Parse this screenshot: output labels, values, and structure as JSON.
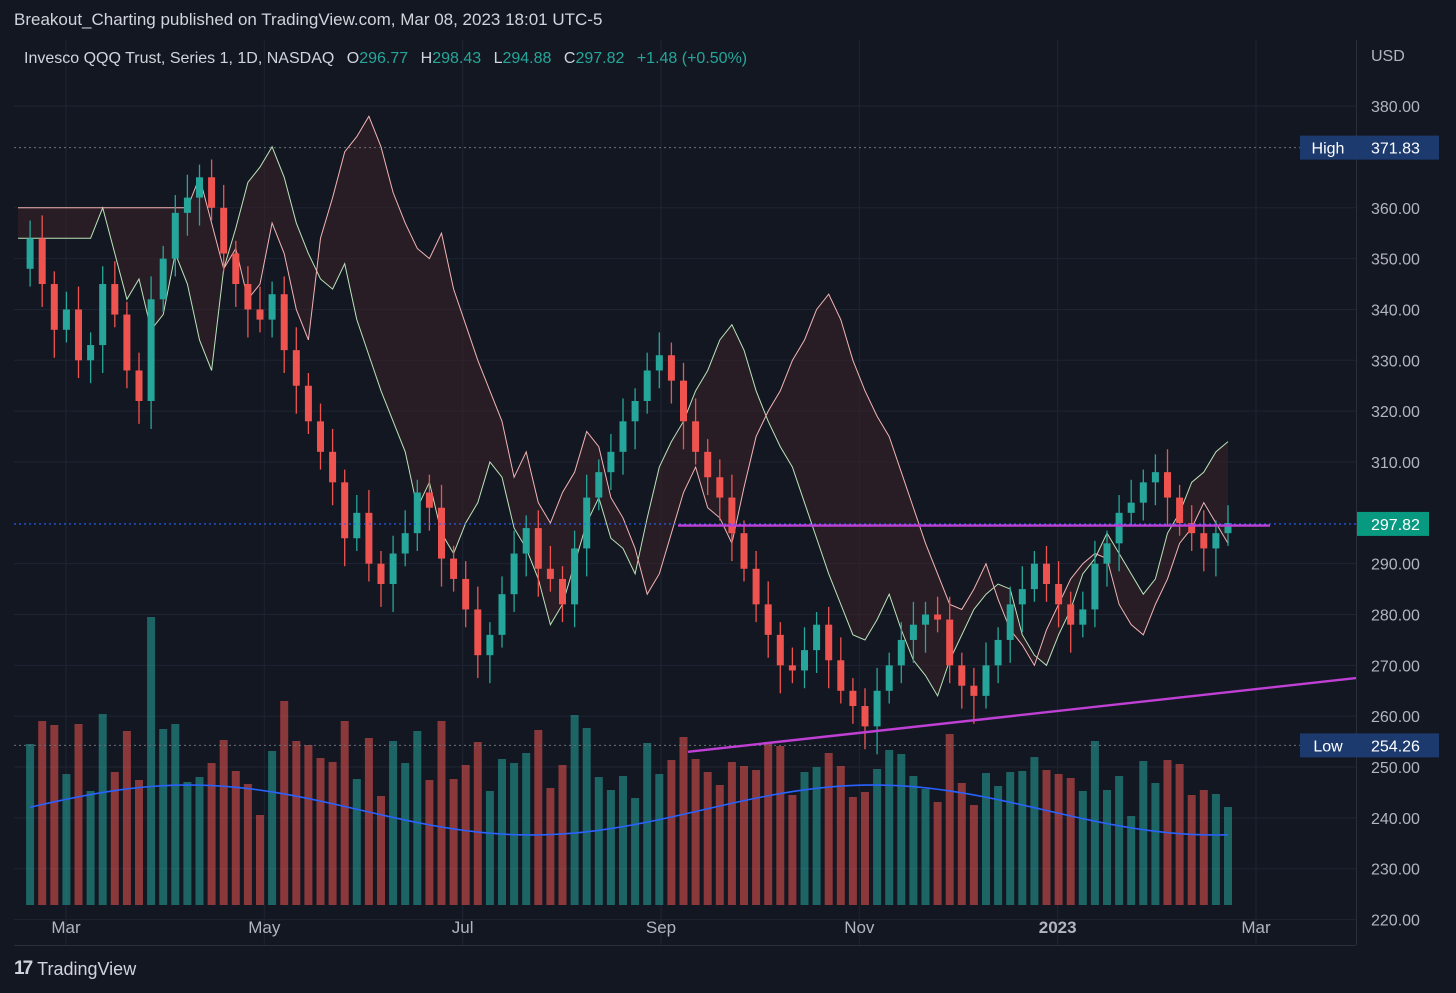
{
  "header": {
    "publisher": "Breakout_Charting published on TradingView.com, Mar 08, 2023 18:01 UTC-5"
  },
  "legend": {
    "symbol": "Invesco QQQ Trust, Series 1, 1D, NASDAQ",
    "o_label": "O",
    "o_value": "296.77",
    "h_label": "H",
    "h_value": "298.43",
    "l_label": "L",
    "l_value": "294.88",
    "c_label": "C",
    "c_value": "297.82",
    "change": "+1.48 (+0.50%)"
  },
  "colors": {
    "up": "#26a69a",
    "down": "#ef5350",
    "ma": "#2962ff",
    "trend": "#c040d6",
    "cloud_bull": "#1f3a2e",
    "cloud_bear": "#3b2228"
  },
  "footer": {
    "brand": "TradingView"
  },
  "chart_data": {
    "type": "candlestick",
    "currency": "USD",
    "y_ticks": [
      "380.00",
      "360.00",
      "350.00",
      "340.00",
      "330.00",
      "320.00",
      "310.00",
      "290.00",
      "280.00",
      "270.00",
      "260.00",
      "250.00",
      "240.00",
      "230.00",
      "220.00"
    ],
    "ylim": [
      215,
      393
    ],
    "x_ticks": [
      "Mar",
      "May",
      "Jul",
      "Sep",
      "Nov",
      "2023",
      "Mar"
    ],
    "high": {
      "label": "High",
      "value": 371.83
    },
    "low": {
      "label": "Low",
      "value": 254.26
    },
    "last": {
      "label": "297.82",
      "value": 297.82
    },
    "resistance": 297.5,
    "support_line": {
      "from": 253.0,
      "to": 267.5
    },
    "close_path": [
      348,
      354,
      345,
      336,
      340,
      330,
      333,
      345,
      339,
      328,
      322,
      342,
      350,
      359,
      362,
      366,
      360,
      351,
      345,
      340,
      338,
      343,
      332,
      325,
      318,
      312,
      306,
      295,
      300,
      290,
      286,
      292,
      296,
      304,
      301,
      291,
      287,
      281,
      272,
      276,
      284,
      292,
      297,
      289,
      287,
      282,
      293,
      303,
      308,
      312,
      318,
      322,
      328,
      331,
      326,
      318,
      312,
      307,
      303,
      296,
      289,
      282,
      276,
      270,
      269,
      273,
      278,
      271,
      265,
      262,
      258,
      265,
      270,
      275,
      278,
      280,
      279,
      270,
      266,
      264,
      270,
      275,
      282,
      285,
      290,
      286,
      282,
      278,
      281,
      290,
      294,
      300,
      302,
      306,
      308,
      303,
      298,
      296,
      293,
      296,
      298
    ]
  }
}
